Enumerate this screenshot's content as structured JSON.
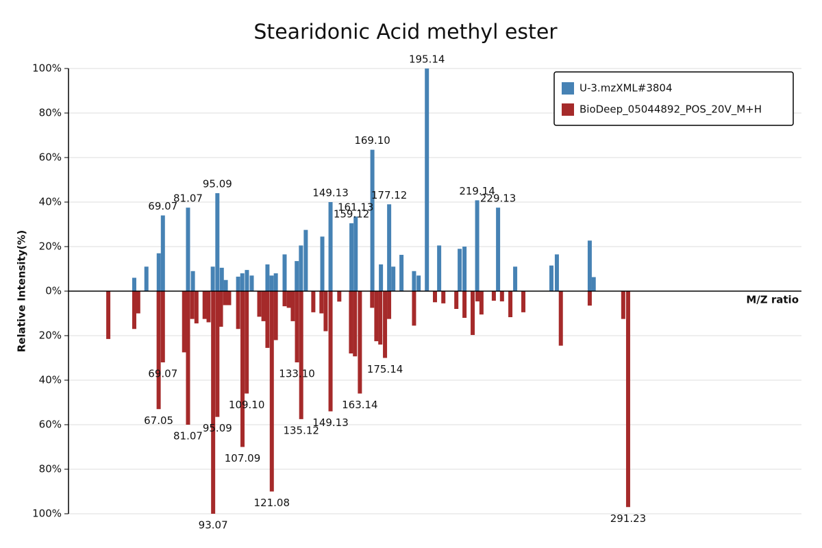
{
  "chart_data": {
    "type": "bar",
    "title": "Stearidonic Acid methyl ester",
    "y_label": "Relative Intensity(%)",
    "x_label": "M/Z ratio",
    "xlim": [
      24,
      374
    ],
    "ylim": [
      -100,
      100
    ],
    "yticks": [
      {
        "value": 100,
        "label": "100%"
      },
      {
        "value": 80,
        "label": "80%"
      },
      {
        "value": 60,
        "label": "60%"
      },
      {
        "value": 40,
        "label": "40%"
      },
      {
        "value": 20,
        "label": "20%"
      },
      {
        "value": 0,
        "label": "0%"
      },
      {
        "value": -20,
        "label": "20%"
      },
      {
        "value": -40,
        "label": "40%"
      },
      {
        "value": -60,
        "label": "60%"
      },
      {
        "value": -80,
        "label": "80%"
      },
      {
        "value": -100,
        "label": "100%"
      }
    ],
    "grid": true,
    "legend": "top-right",
    "series": [
      {
        "name": "U-3.mzXML#3804",
        "color": "#4682b4",
        "x": [
          55.4,
          61.2,
          67.1,
          69.07,
          81.07,
          83.4,
          92.9,
          95.09,
          97.2,
          99.1,
          105,
          107,
          109.2,
          111.5,
          119,
          121,
          123,
          127.2,
          133,
          135,
          137.3,
          145.2,
          149.13,
          159.12,
          161.13,
          169.1,
          173.2,
          177.12,
          179.1,
          183,
          189,
          191.2,
          195.14,
          201,
          210.8,
          213.1,
          219.14,
          229.13,
          237.3,
          254.6,
          257.2,
          272.9,
          274.8
        ],
        "values": [
          6,
          11,
          17,
          34,
          37.5,
          9,
          11,
          44,
          10.5,
          5,
          6.5,
          8,
          9.5,
          7,
          12,
          7,
          8,
          16.5,
          13.5,
          20.5,
          27.5,
          24.5,
          40,
          30.5,
          33.5,
          63.5,
          12,
          39,
          11,
          16.3,
          9,
          7,
          100,
          20.5,
          19,
          20,
          40.8,
          37.5,
          11,
          11.5,
          16.5,
          22.7,
          6.3
        ],
        "labels": [
          null,
          null,
          null,
          "69.07",
          "81.07",
          null,
          null,
          "95.09",
          null,
          null,
          null,
          null,
          null,
          null,
          null,
          null,
          null,
          null,
          null,
          null,
          null,
          null,
          "149.13",
          "159.12",
          "161.13",
          "169.10",
          null,
          "177.12",
          null,
          null,
          null,
          null,
          "195.14",
          null,
          null,
          null,
          "219.14",
          "229.13",
          null,
          null,
          null,
          null,
          null
        ]
      },
      {
        "name": "BioDeep_05044892_POS_20V_M+H",
        "color": "#a52a2a",
        "x": [
          43,
          55.4,
          57.3,
          67.05,
          69.07,
          79.2,
          81.07,
          83.1,
          85.1,
          89,
          90.9,
          93.07,
          95.09,
          96.8,
          98.8,
          100.7,
          105,
          107.09,
          109.1,
          115.1,
          117.1,
          119,
          121.08,
          123,
          127.2,
          129.2,
          131.1,
          133.1,
          135.12,
          140.9,
          144.8,
          146.8,
          149.13,
          153.3,
          158.9,
          160.8,
          163.14,
          169,
          171,
          172.9,
          175.14,
          177.1,
          189,
          199,
          203,
          209.2,
          213.1,
          217,
          219.3,
          221.2,
          227.1,
          231,
          235,
          241.2,
          259.1,
          272.9,
          288.9,
          291.23
        ],
        "values": [
          -21.5,
          -17,
          -10,
          -53,
          -32,
          -27.5,
          -60,
          -12.5,
          -14.5,
          -12.5,
          -14,
          -100,
          -56.5,
          -16,
          -6.3,
          -6.3,
          -17,
          -70,
          -46,
          -11.5,
          -13.5,
          -25.5,
          -90,
          -22,
          -6.8,
          -7.5,
          -13.5,
          -32,
          -57.5,
          -9.5,
          -10,
          -18,
          -54,
          -4.7,
          -28,
          -29.3,
          -46,
          -7.5,
          -22.5,
          -24,
          -30,
          -12.5,
          -15.5,
          -5,
          -5.5,
          -8,
          -12,
          -19.7,
          -4.6,
          -10.5,
          -4.3,
          -4.6,
          -11.7,
          -9.5,
          -24.5,
          -6.5,
          -12.5,
          -97
        ],
        "labels": [
          null,
          null,
          null,
          "67.05",
          "69.07",
          null,
          "81.07",
          null,
          null,
          null,
          null,
          "93.07",
          "95.09",
          null,
          null,
          null,
          null,
          "107.09",
          "109.10",
          null,
          null,
          null,
          "121.08",
          null,
          null,
          null,
          null,
          "133.10",
          "135.12",
          null,
          null,
          null,
          "149.13",
          null,
          null,
          null,
          "163.14",
          null,
          null,
          null,
          "175.14",
          null,
          null,
          null,
          null,
          null,
          null,
          null,
          null,
          null,
          null,
          null,
          null,
          null,
          null,
          null,
          null,
          "291.23"
        ]
      }
    ]
  }
}
